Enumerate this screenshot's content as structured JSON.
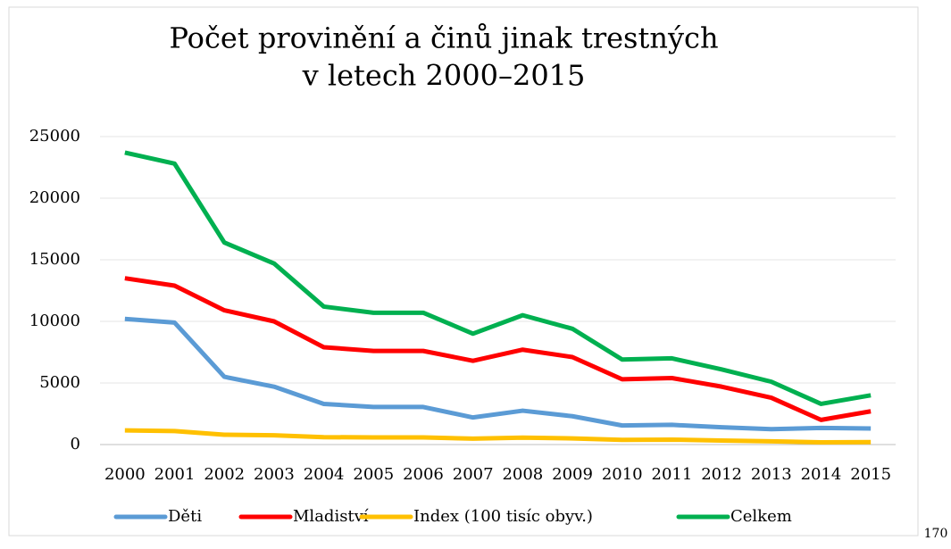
{
  "chart_data": {
    "type": "line",
    "title": [
      "Počet provinění a činů jinak trestných",
      "v letech 2000–2015"
    ],
    "categories": [
      "2000",
      "2001",
      "2002",
      "2003",
      "2004",
      "2005",
      "2006",
      "2007",
      "2008",
      "2009",
      "2010",
      "2011",
      "2012",
      "2013",
      "2014",
      "2015"
    ],
    "series": [
      {
        "name": "Děti",
        "color": "#5b9bd5",
        "values": [
          10200,
          9900,
          5500,
          4700,
          3300,
          3050,
          3050,
          2200,
          2750,
          2300,
          1550,
          1600,
          1400,
          1250,
          1350,
          1300
        ]
      },
      {
        "name": "Mladiství",
        "color": "#ff0000",
        "values": [
          13500,
          12900,
          10900,
          10000,
          7900,
          7600,
          7600,
          6800,
          7700,
          7100,
          5300,
          5400,
          4700,
          3800,
          2000,
          2700
        ]
      },
      {
        "name": "Index (100 tisíc obyv.)",
        "color": "#ffc000",
        "values": [
          1150,
          1100,
          800,
          750,
          600,
          580,
          580,
          480,
          560,
          500,
          380,
          400,
          330,
          260,
          180,
          200
        ]
      },
      {
        "name": "Celkem",
        "color": "#00b050",
        "values": [
          23700,
          22800,
          16400,
          14700,
          11200,
          10700,
          10700,
          9000,
          10500,
          9400,
          6900,
          7000,
          6100,
          5100,
          3300,
          4000
        ]
      }
    ],
    "ylim": [
      0,
      25000
    ],
    "yticks": [
      0,
      5000,
      10000,
      15000,
      20000,
      25000
    ],
    "grid": true,
    "legend": "bottom"
  },
  "page_number": "170"
}
